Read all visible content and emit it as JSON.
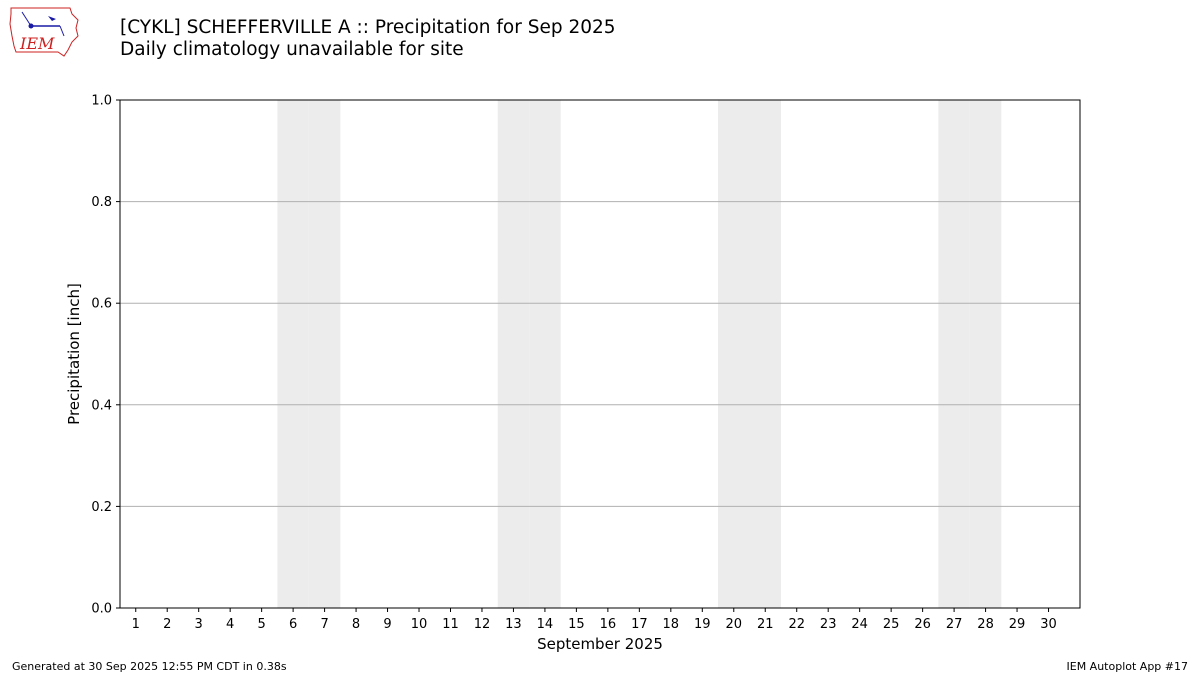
{
  "header": {
    "title": "[CYKL] SCHEFFERVILLE A :: Precipitation for Sep 2025",
    "subtitle": "Daily climatology unavailable for site",
    "logo_text": "IEM"
  },
  "footer": {
    "generated": "Generated at 30 Sep 2025 12:55 PM CDT in 0.38s",
    "app": "IEM Autoplot App #17"
  },
  "colors": {
    "weekend_shading": "#ececec",
    "grid": "#b0b0b0",
    "logo_red": "#cc2222",
    "logo_blue": "#1a1aa6"
  },
  "chart_data": {
    "type": "bar",
    "xlabel": "September 2025",
    "ylabel": "Precipitation [inch]",
    "ylim": [
      0,
      1.0
    ],
    "yticks": [
      "0.0",
      "0.2",
      "0.4",
      "0.6",
      "0.8",
      "1.0"
    ],
    "categories": [
      "1",
      "2",
      "3",
      "4",
      "5",
      "6",
      "7",
      "8",
      "9",
      "10",
      "11",
      "12",
      "13",
      "14",
      "15",
      "16",
      "17",
      "18",
      "19",
      "20",
      "21",
      "22",
      "23",
      "24",
      "25",
      "26",
      "27",
      "28",
      "29",
      "30"
    ],
    "shaded_days": [
      6,
      7,
      13,
      14,
      20,
      21,
      27,
      28
    ],
    "grid": "horizontal",
    "series": [
      {
        "values": [
          0,
          0,
          0,
          0,
          0,
          0,
          0,
          0,
          0,
          0,
          0,
          0,
          0,
          0,
          0,
          0,
          0,
          0,
          0,
          0,
          0,
          0,
          0,
          0,
          0,
          0,
          0,
          0,
          0,
          0
        ]
      }
    ]
  }
}
